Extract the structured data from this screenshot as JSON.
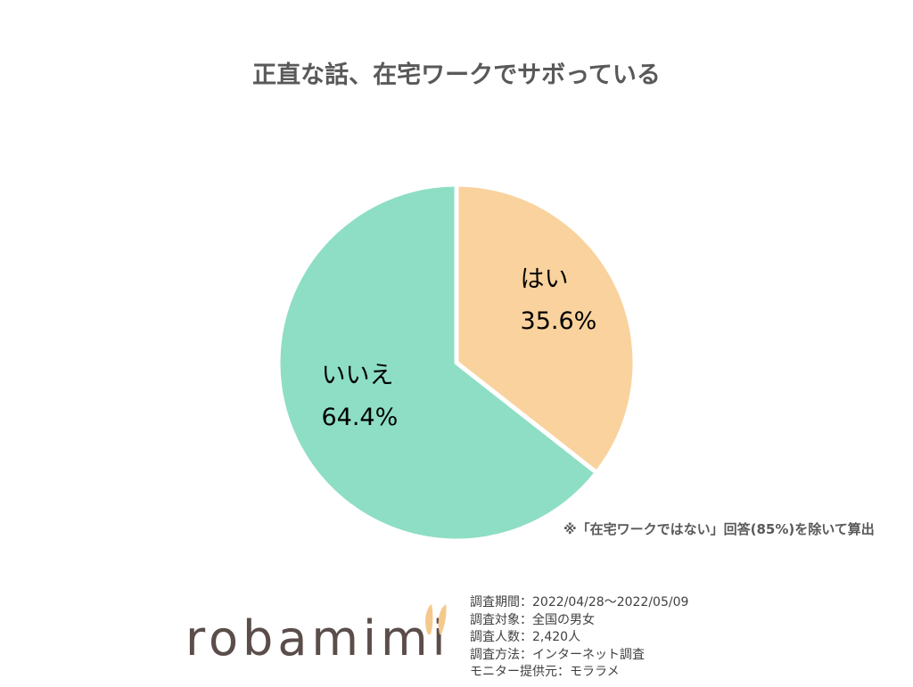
{
  "chart_data": {
    "type": "pie",
    "title": "正直な話、在宅ワークでサボっている",
    "slices": [
      {
        "label": "はい",
        "value": 35.6,
        "value_label": "35.6%",
        "color": "#f9d29d"
      },
      {
        "label": "いいえ",
        "value": 64.4,
        "value_label": "64.4%",
        "color": "#8ddec4"
      }
    ],
    "start": "top, clockwise",
    "legend": "none"
  },
  "note": "※「在宅ワークではない」回答(85%)を除いて算出",
  "logo": {
    "text": "robamimi",
    "ear_color": "#f5c98c"
  },
  "survey": {
    "period": "調査期間：2022/04/28～2022/05/09",
    "target": "調査対象：全国の男女",
    "count": "調査人数：2,420人",
    "method": "調査方法：インターネット調査",
    "provider": "モニター提供元：モララメ"
  }
}
